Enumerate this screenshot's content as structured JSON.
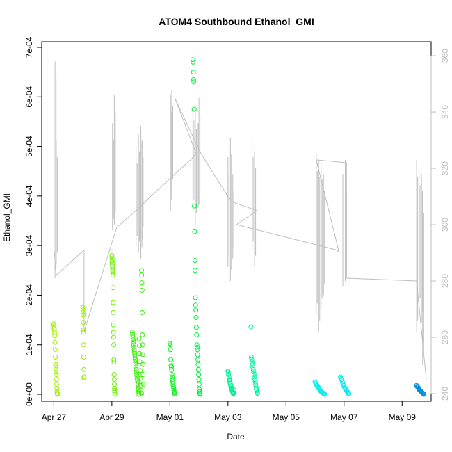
{
  "chart_data": {
    "type": "scatter",
    "title": "ATOM4 Southbound Ethanol_GMI",
    "xlabel": "Date",
    "ylabel": "Ethanol_GMI",
    "xlim": [
      "2018-04-26T14:00",
      "2018-05-10T00:00"
    ],
    "ylim": [
      0,
      0.0007
    ],
    "y2lim": [
      240,
      362
    ],
    "x_ticks": [
      {
        "date": "2018-04-27",
        "label": "Apr 27"
      },
      {
        "date": "2018-04-29",
        "label": "Apr 29"
      },
      {
        "date": "2018-05-01",
        "label": "May 01"
      },
      {
        "date": "2018-05-03",
        "label": "May 03"
      },
      {
        "date": "2018-05-05",
        "label": "May 05"
      },
      {
        "date": "2018-05-07",
        "label": "May 07"
      },
      {
        "date": "2018-05-09",
        "label": "May 09"
      }
    ],
    "y_ticks": [
      {
        "value": 0,
        "label": "0e+00"
      },
      {
        "value": 0.0001,
        "label": "1e-04"
      },
      {
        "value": 0.0002,
        "label": "2e-04"
      },
      {
        "value": 0.0003,
        "label": "3e-04"
      },
      {
        "value": 0.0004,
        "label": "4e-04"
      },
      {
        "value": 0.0005,
        "label": "5e-04"
      },
      {
        "value": 0.0006,
        "label": "6e-04"
      },
      {
        "value": 0.0007,
        "label": "7e-04"
      }
    ],
    "y2_ticks": [
      {
        "value": 240,
        "label": "240"
      },
      {
        "value": 260,
        "label": "260"
      },
      {
        "value": 280,
        "label": "280"
      },
      {
        "value": 300,
        "label": "300"
      },
      {
        "value": 320,
        "label": "320"
      },
      {
        "value": 340,
        "label": "340"
      },
      {
        "value": 360,
        "label": "360"
      }
    ],
    "grid": false,
    "legend": "none",
    "line_color": "#bebebe",
    "flights": [
      {
        "start": "2018-04-27T00:00",
        "end": "2018-04-27T03:00",
        "color": "#a0f000",
        "values": [
          0.000142,
          0.000138,
          0.000133,
          0.00013,
          0.000125,
          0.000118,
          0.000105,
          9e-05,
          7.5e-05,
          6e-05,
          5.5e-05,
          5e-05,
          4.5e-05,
          4e-05,
          3e-05,
          2e-05,
          1.2e-05,
          5e-06,
          2e-06,
          0.0
        ]
      },
      {
        "start": "2018-04-28T00:00",
        "end": "2018-04-28T01:00",
        "color": "#94f000",
        "values": [
          0.000175,
          0.00017,
          0.000165,
          0.00016,
          0.000145,
          0.00013,
          0.000125,
          0.0001,
          7.5e-05,
          5e-05,
          3.5e-05,
          3.3e-05
        ]
      },
      {
        "start": "2018-04-29T00:00",
        "end": "2018-04-29T02:30",
        "color": "#6cf000",
        "values": [
          0.00028,
          0.000275,
          0.00027,
          0.000265,
          0.00026,
          0.000255,
          0.00025,
          0.000245,
          0.00024,
          0.000215,
          0.000185,
          0.000165,
          0.00014,
          0.000125,
          0.000115,
          0.0001,
          7e-05,
          6.5e-05,
          4e-05,
          3e-05,
          2e-05,
          1.2e-05,
          8e-06,
          4e-06,
          0.0
        ]
      },
      {
        "start": "2018-04-29T17:00",
        "end": "2018-04-30T00:30",
        "color": "#34f000",
        "values": [
          0.000125,
          0.00012,
          0.000115,
          0.00011,
          0.000105,
          0.0001,
          9.5e-05,
          9e-05,
          8.5e-05,
          8e-05,
          7.5e-05,
          7e-05,
          6.5e-05,
          6e-05,
          5.5e-05,
          5e-05,
          4.5e-05,
          4e-05,
          3.5e-05,
          3e-05,
          2.5e-05,
          2e-05,
          1.5e-05,
          1e-05,
          5e-06,
          0.0,
          0.000112,
          9.8e-05,
          8.2e-05,
          6.6e-05,
          4.8e-05,
          3.2e-05,
          1.8e-05,
          8e-06,
          3e-06,
          1e-06
        ]
      },
      {
        "start": "2018-04-30T00:30",
        "end": "2018-04-30T02:00",
        "color": "#30f000",
        "values": [
          0.00025,
          0.00024,
          0.000225,
          0.00021,
          0.000165,
          0.00012,
          0.0001,
          8e-05,
          6e-05,
          4e-05,
          2e-05
        ]
      },
      {
        "start": "2018-05-01T00:00",
        "end": "2018-05-01T04:00",
        "color": "#10f020",
        "values": [
          0.000103,
          0.0001,
          9e-05,
          7e-05,
          5.8e-05,
          5.5e-05,
          5e-05,
          4e-05,
          3.5e-05,
          3e-05,
          2.5e-05,
          2e-05,
          1.6e-05,
          1.2e-05,
          8e-06,
          5e-06,
          3e-06,
          1e-06
        ]
      },
      {
        "start": "2018-05-01T19:00",
        "end": "2018-05-02T01:00",
        "color": "#00f040",
        "values": [
          0.000675,
          0.00067,
          0.00065,
          0.000635,
          0.00063,
          0.000575,
          0.00038,
          0.000328,
          0.00027,
          0.00025,
          0.000195,
          0.00018,
          0.00017,
          0.000155,
          0.000135,
          0.00012,
          0.0001,
          9.5e-05,
          9e-05,
          8e-05,
          7e-05,
          6e-05,
          5e-05,
          4e-05,
          3e-05,
          2e-05,
          1e-05,
          5e-06,
          2e-06,
          0.0
        ]
      },
      {
        "start": "2018-05-03T00:00",
        "end": "2018-05-03T05:00",
        "color": "#00f090",
        "values": [
          4.7e-05,
          4.5e-05,
          4e-05,
          3.5e-05,
          3e-05,
          2.8e-05,
          2.5e-05,
          2.2e-05,
          2e-05,
          1.7e-05,
          1.5e-05,
          1.2e-05,
          1e-05,
          8e-06,
          6e-06,
          4e-06,
          2e-06,
          1e-06,
          3e-06,
          9e-06
        ]
      },
      {
        "start": "2018-05-03T19:00",
        "end": "2018-05-04T00:30",
        "color": "#00f0a0",
        "values": [
          0.000136,
          7.5e-05,
          7e-05,
          6.5e-05,
          6e-05,
          5.5e-05,
          5e-05,
          4.5e-05,
          4e-05,
          3.5e-05,
          3e-05,
          2.5e-05,
          2e-05,
          1.5e-05,
          1e-05,
          7e-06,
          4e-06,
          2e-06
        ]
      },
      {
        "start": "2018-05-06T00:00",
        "end": "2018-05-06T08:00",
        "color": "#00eeee",
        "values": [
          2.5e-05,
          2.3e-05,
          2e-05,
          1.8e-05,
          1.6e-05,
          1.4e-05,
          1.2e-05,
          1e-05,
          8e-06,
          6e-06,
          5e-06,
          4e-06,
          3e-06,
          2e-06,
          1e-06,
          0.0
        ]
      },
      {
        "start": "2018-05-06T21:00",
        "end": "2018-05-07T04:00",
        "color": "#00e8f0",
        "values": [
          3.5e-05,
          3.2e-05,
          3e-05,
          2.5e-05,
          2e-05,
          1.8e-05,
          1.5e-05,
          1.2e-05,
          1e-05,
          8e-06,
          6e-06,
          4e-06,
          2e-06,
          1e-06
        ]
      },
      {
        "start": "2018-05-09T12:00",
        "end": "2018-05-09T18:00",
        "color": "#0090e0",
        "values": [
          1.8e-05,
          1.6e-05,
          1.5e-05,
          1.4e-05,
          1.2e-05,
          1e-05,
          9e-06,
          8e-06,
          7e-06,
          6e-06,
          5e-06,
          4e-06,
          3e-06,
          2e-06,
          1e-06,
          0.0
        ]
      }
    ],
    "secondary_series": [
      [
        "2018-04-27T00:00",
        290
      ],
      [
        "2018-04-27T00:30",
        290
      ],
      [
        "2018-04-27T02:00",
        282
      ],
      [
        "2018-04-28T01:00",
        291
      ],
      [
        "2018-04-28T01:00",
        262
      ],
      [
        "2018-04-29T04:00",
        299
      ],
      [
        "2018-04-29T20:00",
        305
      ],
      [
        "2018-04-30T08:00",
        310
      ],
      [
        "2018-05-01T17:00",
        323
      ],
      [
        "2018-05-01T22:00",
        325
      ],
      [
        "2018-05-01T04:00",
        345
      ],
      [
        "2018-05-02T02:00",
        325
      ],
      [
        "2018-05-03T00:00",
        310
      ],
      [
        "2018-05-03T04:00",
        308
      ],
      [
        "2018-05-04T00:00",
        305
      ],
      [
        "2018-05-03T07:00",
        300
      ],
      [
        "2018-05-06T18:00",
        291
      ],
      [
        "2018-05-06T20:00",
        290
      ],
      [
        "2018-05-06T01:00",
        323
      ],
      [
        "2018-05-07T02:00",
        322
      ],
      [
        "2018-05-07T02:00",
        281
      ],
      [
        "2018-05-09T12:00",
        280
      ],
      [
        "2018-05-09T20:00",
        245
      ]
    ],
    "secondary_spikes": [
      {
        "date": "2018-04-27T01:00",
        "low": 281,
        "high": 358
      },
      {
        "date": "2018-04-27T02:00",
        "low": 286,
        "high": 330
      },
      {
        "date": "2018-04-29T00:30",
        "low": 298,
        "high": 336
      },
      {
        "date": "2018-04-29T02:00",
        "low": 300,
        "high": 346
      },
      {
        "date": "2018-04-29T20:00",
        "low": 292,
        "high": 328
      },
      {
        "date": "2018-04-29T22:00",
        "low": 290,
        "high": 332
      },
      {
        "date": "2018-04-30T00:00",
        "low": 288,
        "high": 335
      },
      {
        "date": "2018-04-30T01:00",
        "low": 295,
        "high": 330
      },
      {
        "date": "2018-05-01T00:30",
        "low": 305,
        "high": 346
      },
      {
        "date": "2018-05-01T01:30",
        "low": 312,
        "high": 348
      },
      {
        "date": "2018-05-01T19:00",
        "low": 305,
        "high": 343
      },
      {
        "date": "2018-05-01T21:00",
        "low": 300,
        "high": 340
      },
      {
        "date": "2018-05-01T22:30",
        "low": 302,
        "high": 342
      },
      {
        "date": "2018-05-02T00:00",
        "low": 307,
        "high": 345
      },
      {
        "date": "2018-05-03T00:00",
        "low": 285,
        "high": 324
      },
      {
        "date": "2018-05-03T02:00",
        "low": 280,
        "high": 331
      },
      {
        "date": "2018-05-03T04:00",
        "low": 288,
        "high": 318
      },
      {
        "date": "2018-05-03T20:00",
        "low": 290,
        "high": 330
      },
      {
        "date": "2018-05-03T22:00",
        "low": 285,
        "high": 326
      },
      {
        "date": "2018-05-06T01:00",
        "low": 268,
        "high": 325
      },
      {
        "date": "2018-05-06T03:00",
        "low": 262,
        "high": 323
      },
      {
        "date": "2018-05-06T05:00",
        "low": 270,
        "high": 322
      },
      {
        "date": "2018-05-06T07:00",
        "low": 275,
        "high": 318
      },
      {
        "date": "2018-05-06T23:00",
        "low": 278,
        "high": 318
      },
      {
        "date": "2018-05-07T01:00",
        "low": 280,
        "high": 323
      },
      {
        "date": "2018-05-09T12:00",
        "low": 262,
        "high": 323
      },
      {
        "date": "2018-05-09T14:00",
        "low": 270,
        "high": 320
      },
      {
        "date": "2018-05-09T16:00",
        "low": 265,
        "high": 318
      },
      {
        "date": "2018-05-09T17:00",
        "low": 250,
        "high": 310
      }
    ]
  }
}
